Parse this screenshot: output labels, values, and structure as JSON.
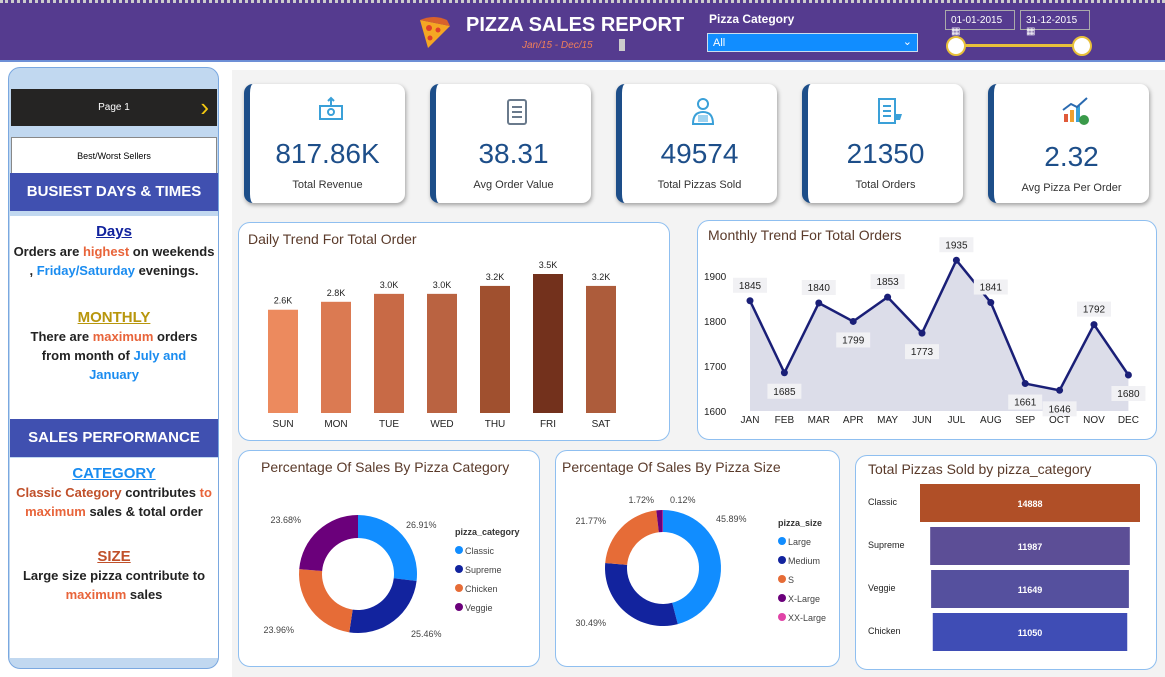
{
  "header": {
    "title": "PIZZA SALES REPORT",
    "subtitle": "Jan/15 - Dec/15",
    "category_label": "Pizza Category",
    "category_value": "All",
    "start_date": "01-01-2015",
    "end_date": "31-12-2015"
  },
  "sidebar": {
    "page_button": "Page 1",
    "best_worst_button": "Best/Worst Sellers",
    "busiest_heading": "BUSIEST DAYS & TIMES",
    "days_heading": "Days",
    "days_t1": "Orders are ",
    "days_hl1": "highest",
    "days_t2": " on weekends , ",
    "days_hl2": "Friday/Saturday",
    "days_t3": " evenings.",
    "monthly_heading": "MONTHLY",
    "monthly_t1": "There  are ",
    "monthly_hl1": "maximum",
    "monthly_t2": "  orders from month of ",
    "monthly_hl2": "July and January",
    "sales_heading": "SALES PERFORMANCE",
    "category_heading": "CATEGORY",
    "cat_hl1": "Classic Category",
    "cat_t1": " contributes ",
    "cat_hl2": "to maximum",
    "cat_t2": "  sales & total order",
    "size_heading": "SIZE",
    "size_t1": "Large size pizza contribute to ",
    "size_hl1": "maximum",
    "size_t2": " sales"
  },
  "kpis": [
    {
      "value": "817.86K",
      "label": "Total Revenue",
      "icon": "money-icon"
    },
    {
      "value": "38.31",
      "label": "Avg Order Value",
      "icon": "clipboard-icon"
    },
    {
      "value": "49574",
      "label": "Total Pizzas Sold",
      "icon": "delivery-icon"
    },
    {
      "value": "21350",
      "label": "Total Orders",
      "icon": "order-list-icon"
    },
    {
      "value": "2.32",
      "label": "Avg Pizza Per Order",
      "icon": "growth-chart-icon"
    }
  ],
  "chart_data": [
    {
      "type": "bar",
      "title": "Daily Trend For Total Order",
      "categories": [
        "SUN",
        "MON",
        "TUE",
        "WED",
        "THU",
        "FRI",
        "SAT"
      ],
      "values": [
        2.6,
        2.8,
        3.0,
        3.0,
        3.2,
        3.5,
        3.2
      ],
      "data_labels": [
        "2.6K",
        "2.8K",
        "3.0K",
        "3.0K",
        "3.2K",
        "3.5K",
        "3.2K"
      ],
      "colors": [
        "#ec8a5e",
        "#db7a52",
        "#c86a46",
        "#ba6341",
        "#a0502f",
        "#73311c",
        "#ad5c3b"
      ]
    },
    {
      "type": "area",
      "title": "Monthly Trend For Total Orders",
      "categories": [
        "JAN",
        "FEB",
        "MAR",
        "APR",
        "MAY",
        "JUN",
        "JUL",
        "AUG",
        "SEP",
        "OCT",
        "NOV",
        "DEC"
      ],
      "values": [
        1845,
        1685,
        1840,
        1799,
        1853,
        1773,
        1935,
        1841,
        1661,
        1646,
        1792,
        1680
      ],
      "ylim": [
        1600,
        1950
      ],
      "yticks": [
        1600,
        1700,
        1800,
        1900
      ],
      "color": "#1a1f77"
    },
    {
      "type": "pie",
      "title": "Percentage Of Sales By Pizza Category",
      "legend_title": "pizza_category",
      "labels": [
        "Classic",
        "Supreme",
        "Chicken",
        "Veggie"
      ],
      "values": [
        26.91,
        25.46,
        23.96,
        23.68
      ],
      "data_labels": [
        "26.91%",
        "25.46%",
        "23.96%",
        "23.68%"
      ],
      "colors": [
        "#118dff",
        "#12239e",
        "#e66c37",
        "#6b007b"
      ]
    },
    {
      "type": "pie",
      "title": "Percentage Of Sales By Pizza Size",
      "legend_title": "pizza_size",
      "labels": [
        "Large",
        "Medium",
        "S",
        "X-Large",
        "XX-Large"
      ],
      "values": [
        45.89,
        30.49,
        21.77,
        1.72,
        0.12
      ],
      "data_labels": [
        "45.89%",
        "30.49%",
        "21.77%",
        "1.72%",
        "0.12%"
      ],
      "colors": [
        "#118dff",
        "#12239e",
        "#e66c37",
        "#6b007b",
        "#e044a7"
      ]
    },
    {
      "type": "bar",
      "orientation": "funnel",
      "title": "Total Pizzas Sold by pizza_category",
      "categories": [
        "Classic",
        "Supreme",
        "Veggie",
        "Chicken"
      ],
      "values": [
        14888,
        11987,
        11649,
        11050
      ],
      "data_labels": [
        "14888",
        "11987",
        "11649",
        "11050"
      ],
      "colors": [
        "#b04f27",
        "#5c4e96",
        "#55509e",
        "#3f4db5"
      ]
    }
  ]
}
